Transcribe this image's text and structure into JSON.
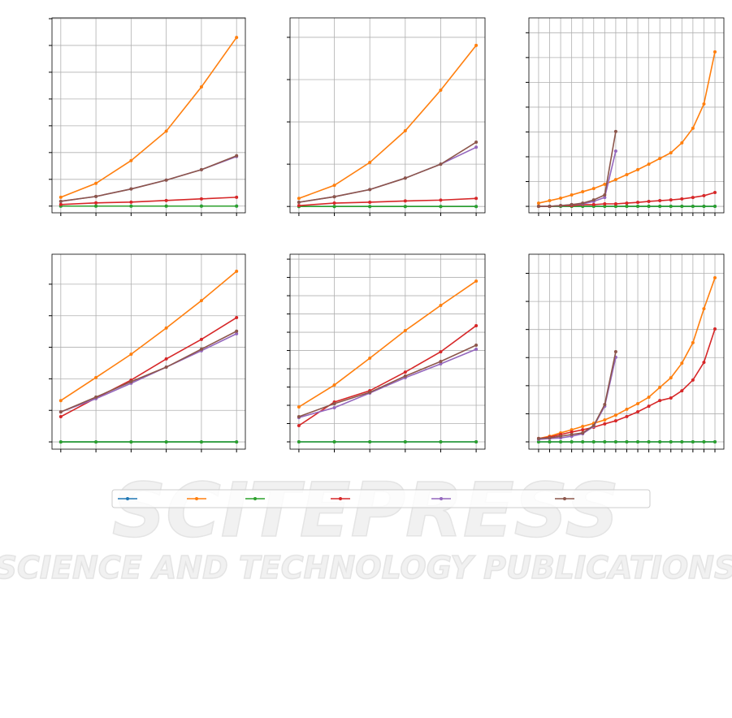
{
  "chart_data": [
    {
      "type": "line",
      "grid": true,
      "x": [
        1,
        2,
        3,
        4,
        5,
        6
      ],
      "xlim": [
        0.75,
        6.25
      ],
      "xticks": [
        1,
        2,
        3,
        4,
        5,
        6
      ],
      "ylim": [
        -0.25,
        7.03
      ],
      "yticks": [
        0,
        1,
        2,
        3,
        4,
        5,
        6,
        7
      ],
      "series": [
        {
          "color": "#1f77b4",
          "values": [
            0,
            0,
            0,
            0,
            0,
            0
          ]
        },
        {
          "color": "#ff7f0e",
          "values": [
            0.33,
            0.85,
            1.7,
            2.8,
            4.45,
            6.3
          ]
        },
        {
          "color": "#2ca02c",
          "values": [
            0,
            0,
            0,
            0,
            0,
            0
          ]
        },
        {
          "color": "#d62728",
          "values": [
            0.06,
            0.12,
            0.15,
            0.21,
            0.27,
            0.33
          ]
        },
        {
          "color": "#9467bd",
          "values": [
            0.18,
            0.36,
            0.64,
            0.97,
            1.36,
            1.85
          ]
        },
        {
          "color": "#8c564b",
          "values": [
            0.18,
            0.36,
            0.64,
            0.97,
            1.36,
            1.88
          ]
        }
      ]
    },
    {
      "type": "line",
      "grid": true,
      "x": [
        1,
        2,
        3,
        4,
        5,
        6
      ],
      "xlim": [
        0.75,
        6.25
      ],
      "xticks": [
        1,
        2,
        3,
        4,
        5,
        6
      ],
      "ylim": [
        -0.15,
        4.46
      ],
      "yticks": [
        0,
        1,
        2,
        3,
        4
      ],
      "series": [
        {
          "color": "#1f77b4",
          "values": [
            0,
            0,
            0,
            0,
            0,
            0
          ]
        },
        {
          "color": "#ff7f0e",
          "values": [
            0.19,
            0.5,
            1.04,
            1.79,
            2.75,
            3.81
          ]
        },
        {
          "color": "#2ca02c",
          "values": [
            0,
            0,
            0,
            0,
            0,
            0
          ]
        },
        {
          "color": "#d62728",
          "values": [
            0.02,
            0.08,
            0.1,
            0.13,
            0.15,
            0.19
          ]
        },
        {
          "color": "#9467bd",
          "values": [
            0.1,
            0.23,
            0.4,
            0.67,
            1.0,
            1.4
          ]
        },
        {
          "color": "#8c564b",
          "values": [
            0.1,
            0.23,
            0.4,
            0.67,
            1.0,
            1.52
          ]
        }
      ]
    },
    {
      "type": "line",
      "grid": true,
      "x": [
        1,
        2,
        3,
        4,
        5,
        6,
        7,
        8,
        9,
        10,
        11,
        12,
        13,
        14,
        15,
        16,
        17
      ],
      "xlim": [
        0.12,
        17.81
      ],
      "xticks": [
        1,
        2,
        3,
        4,
        5,
        6,
        7,
        8,
        9,
        10,
        11,
        12,
        13,
        14,
        15,
        16,
        17
      ],
      "ylim": [
        -0.26,
        7.6
      ],
      "yticks": [
        0,
        1,
        2,
        3,
        4,
        5,
        6,
        7
      ],
      "series": [
        {
          "color": "#1f77b4",
          "values": [
            0,
            0,
            0,
            0,
            0,
            0,
            0,
            0,
            0,
            0,
            0,
            0,
            0,
            0,
            0,
            0,
            0
          ]
        },
        {
          "color": "#ff7f0e",
          "values": [
            0.13,
            0.23,
            0.33,
            0.46,
            0.59,
            0.72,
            0.89,
            1.08,
            1.28,
            1.48,
            1.7,
            1.93,
            2.16,
            2.56,
            3.15,
            4.13,
            6.23
          ]
        },
        {
          "color": "#2ca02c",
          "values": [
            0,
            0,
            0,
            0,
            0,
            0,
            0,
            0,
            0,
            0,
            0,
            0,
            0,
            0,
            0,
            0,
            0
          ]
        },
        {
          "color": "#d62728",
          "values": [
            0,
            0,
            0.03,
            0.03,
            0.07,
            0.07,
            0.1,
            0.1,
            0.13,
            0.16,
            0.2,
            0.23,
            0.26,
            0.3,
            0.36,
            0.43,
            0.56
          ]
        },
        {
          "color": "#9467bd",
          "values": [
            0,
            0,
            0.03,
            0.07,
            0.1,
            0.2,
            0.36,
            2.23,
            null,
            null,
            null,
            null,
            null,
            null,
            null,
            null,
            null
          ]
        },
        {
          "color": "#8c564b",
          "values": [
            0,
            0,
            0.03,
            0.07,
            0.13,
            0.26,
            0.46,
            3.02,
            null,
            null,
            null,
            null,
            null,
            null,
            null,
            null,
            null
          ]
        }
      ]
    },
    {
      "type": "line",
      "grid": true,
      "x": [
        1,
        2,
        3,
        4,
        5,
        6
      ],
      "xlim": [
        0.75,
        6.25
      ],
      "xticks": [
        1,
        2,
        3,
        4,
        5,
        6
      ],
      "ylim": [
        -0.23,
        5.95
      ],
      "yticks": [
        0,
        1,
        2,
        3,
        4,
        5
      ],
      "series": [
        {
          "color": "#1f77b4",
          "values": [
            0,
            0,
            0,
            0,
            0,
            0
          ]
        },
        {
          "color": "#ff7f0e",
          "values": [
            1.31,
            2.04,
            2.78,
            3.61,
            4.48,
            5.41
          ]
        },
        {
          "color": "#2ca02c",
          "values": [
            0,
            0,
            0,
            0,
            0,
            0
          ]
        },
        {
          "color": "#d62728",
          "values": [
            0.8,
            1.39,
            1.96,
            2.63,
            3.25,
            3.94
          ]
        },
        {
          "color": "#9467bd",
          "values": [
            0.95,
            1.37,
            1.86,
            2.37,
            2.89,
            3.43
          ]
        },
        {
          "color": "#8c564b",
          "values": [
            0.95,
            1.42,
            1.91,
            2.37,
            2.94,
            3.51
          ]
        }
      ]
    },
    {
      "type": "line",
      "grid": true,
      "x": [
        1,
        2,
        3,
        4,
        5,
        6
      ],
      "xlim": [
        0.75,
        6.25
      ],
      "xticks": [
        1,
        2,
        3,
        4,
        5,
        6
      ],
      "ylim": [
        -0.4,
        10.27
      ],
      "yticks": [
        0,
        1,
        2,
        3,
        4,
        5,
        6,
        7,
        8,
        9,
        10
      ],
      "series": [
        {
          "color": "#1f77b4",
          "values": [
            0,
            0,
            0,
            0,
            0,
            0
          ]
        },
        {
          "color": "#ff7f0e",
          "values": [
            1.91,
            3.11,
            4.58,
            6.09,
            7.47,
            8.8
          ]
        },
        {
          "color": "#2ca02c",
          "values": [
            0,
            0,
            0,
            0,
            0,
            0
          ]
        },
        {
          "color": "#d62728",
          "values": [
            0.89,
            2.18,
            2.8,
            3.82,
            4.93,
            6.36
          ]
        },
        {
          "color": "#9467bd",
          "values": [
            1.33,
            1.87,
            2.67,
            3.51,
            4.27,
            5.07
          ]
        },
        {
          "color": "#8c564b",
          "values": [
            1.38,
            2.09,
            2.71,
            3.6,
            4.4,
            5.29
          ]
        }
      ]
    },
    {
      "type": "line",
      "grid": true,
      "x": [
        1,
        2,
        3,
        4,
        5,
        6,
        7,
        8,
        9,
        10,
        11,
        12,
        13,
        14,
        15,
        16,
        17
      ],
      "xlim": [
        0.12,
        17.81
      ],
      "xticks": [
        1,
        2,
        3,
        4,
        5,
        6,
        7,
        8,
        9,
        10,
        11,
        12,
        13,
        14,
        15,
        16,
        17
      ],
      "ylim": [
        -0.26,
        6.68
      ],
      "yticks": [
        0,
        1,
        2,
        3,
        4,
        5,
        6
      ],
      "series": [
        {
          "color": "#1f77b4",
          "values": [
            0,
            0,
            0,
            0,
            0,
            0,
            0,
            0,
            0,
            0,
            0,
            0,
            0,
            0,
            0,
            0,
            0
          ]
        },
        {
          "color": "#ff7f0e",
          "values": [
            0.12,
            0.2,
            0.32,
            0.43,
            0.55,
            0.66,
            0.78,
            0.95,
            1.16,
            1.36,
            1.59,
            1.94,
            2.28,
            2.8,
            3.53,
            4.74,
            5.84
          ]
        },
        {
          "color": "#2ca02c",
          "values": [
            0,
            0,
            0,
            0,
            0,
            0,
            0,
            0,
            0,
            0,
            0,
            0,
            0,
            0,
            0,
            0,
            0
          ]
        },
        {
          "color": "#d62728",
          "values": [
            0.12,
            0.17,
            0.26,
            0.35,
            0.43,
            0.52,
            0.64,
            0.75,
            0.9,
            1.07,
            1.27,
            1.47,
            1.56,
            1.82,
            2.2,
            2.83,
            4.02
          ]
        },
        {
          "color": "#9467bd",
          "values": [
            0.09,
            0.12,
            0.14,
            0.2,
            0.29,
            0.55,
            1.27,
            3.01,
            null,
            null,
            null,
            null,
            null,
            null,
            null,
            null,
            null
          ]
        },
        {
          "color": "#8c564b",
          "values": [
            0.12,
            0.14,
            0.2,
            0.26,
            0.32,
            0.58,
            1.33,
            3.21,
            null,
            null,
            null,
            null,
            null,
            null,
            null,
            null,
            null
          ]
        }
      ]
    }
  ],
  "watermark": {
    "title": "SCITEPRESS",
    "subtitle": "SCIENCE AND TECHNOLOGY PUBLICATIONS"
  }
}
